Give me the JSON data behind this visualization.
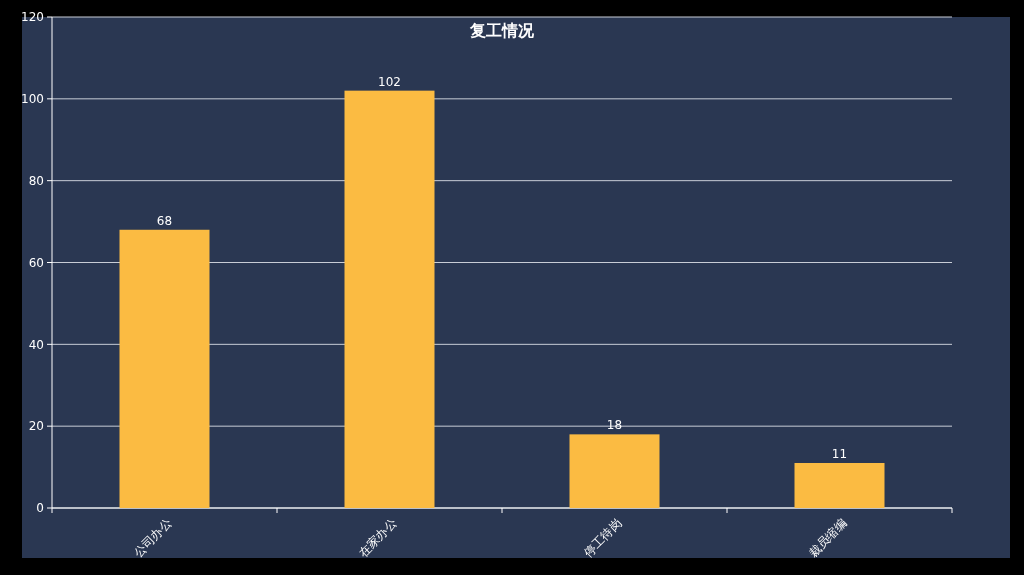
{
  "chart_data": {
    "type": "bar",
    "title": "复工情况",
    "categories": [
      "公司办公",
      "在家办公",
      "停工待岗",
      "裁员缩编"
    ],
    "values": [
      68,
      102,
      18,
      11
    ],
    "color": "#fbbb42",
    "ylim": [
      0,
      120
    ],
    "yticks": [
      0,
      20,
      40,
      60,
      80,
      100,
      120
    ],
    "grid": "y",
    "data_labels": true
  }
}
